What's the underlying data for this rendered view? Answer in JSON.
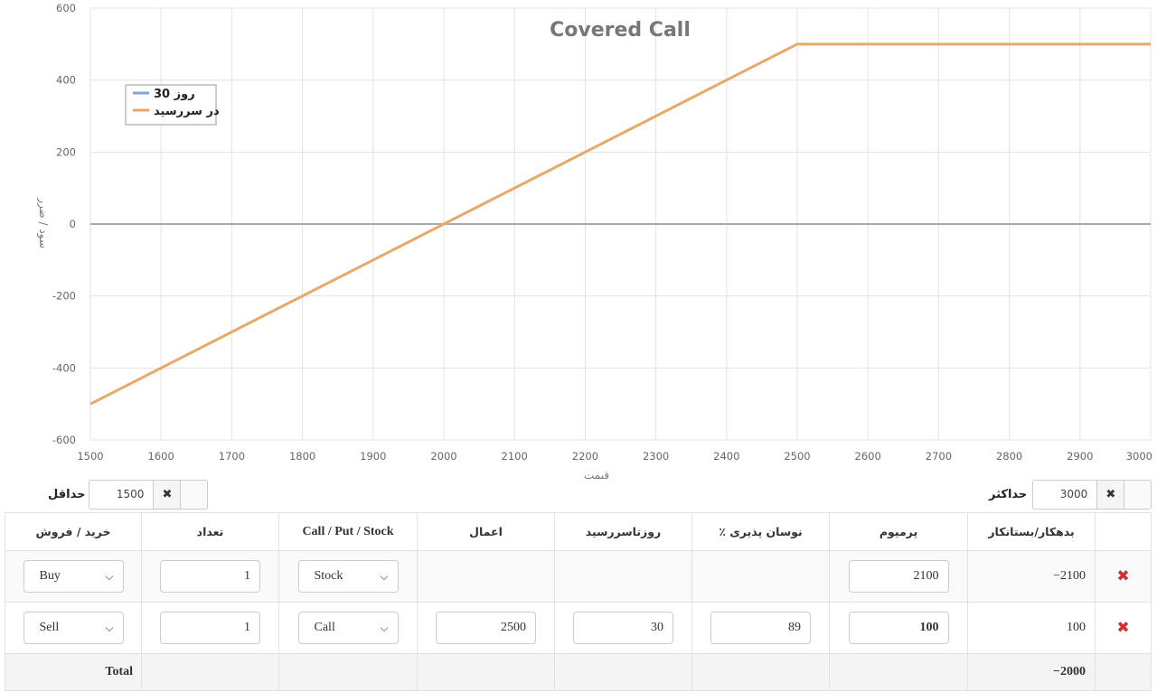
{
  "chart_data": {
    "type": "line",
    "title": "Covered Call",
    "xlabel": "قیمت",
    "ylabel": "سود / ضرر",
    "xlim": [
      1500,
      3000
    ],
    "ylim": [
      -600,
      600
    ],
    "x_ticks": [
      1500,
      1600,
      1700,
      1800,
      1900,
      2000,
      2100,
      2200,
      2300,
      2400,
      2500,
      2600,
      2700,
      2800,
      2900,
      3000
    ],
    "y_ticks": [
      -600,
      -400,
      -200,
      0,
      200,
      400,
      600
    ],
    "grid": true,
    "legend_position": "top-left",
    "series": [
      {
        "name": "30 روز",
        "color": "#7ea7d8",
        "x": [],
        "y": []
      },
      {
        "name": "در سررسید",
        "color": "#e8a868",
        "x": [
          1500,
          2500,
          3000
        ],
        "y": [
          -500,
          500,
          500
        ]
      }
    ]
  },
  "range": {
    "min_label": "حداقل",
    "min_value": "1500",
    "max_label": "حداکثر",
    "max_value": "3000",
    "clear_symbol": "✖"
  },
  "table": {
    "headers": {
      "side": "خرید / فروش",
      "qty": "تعداد",
      "type": "Call / Put / Stock",
      "strike": "اعمال",
      "days": "روزتاسررسید",
      "vol": "٪ نوسان پذیری",
      "premium": "پرمیوم",
      "debit": "بدهکار/بستانکار"
    },
    "rows": [
      {
        "side": "Buy",
        "qty": "1",
        "type": "Stock",
        "strike": "",
        "days": "",
        "vol": "",
        "premium": "2100",
        "debit": "−2100"
      },
      {
        "side": "Sell",
        "qty": "1",
        "type": "Call",
        "strike": "2500",
        "days": "30",
        "vol": "89",
        "premium": "100",
        "debit": "100"
      }
    ],
    "total_label": "Total",
    "total_value": "−2000",
    "delete_symbol": "✖",
    "chevron": "⌵"
  }
}
